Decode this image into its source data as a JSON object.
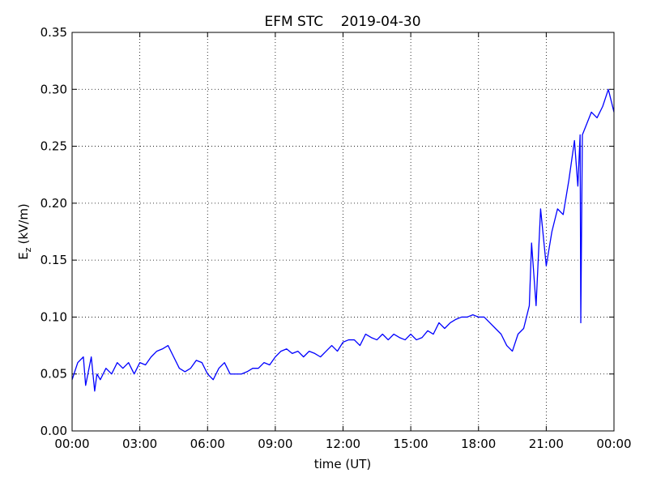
{
  "chart_data": {
    "type": "line",
    "title": "EFM STC    2019-04-30",
    "xlabel": "time (UT)",
    "ylabel": "E",
    "ylabel_subscript": "z",
    "ylabel_unit": "(kV/m)",
    "xlim": [
      0,
      24
    ],
    "ylim": [
      0,
      0.35
    ],
    "xticks": [
      {
        "value": 0,
        "label": "00:00"
      },
      {
        "value": 3,
        "label": "03:00"
      },
      {
        "value": 6,
        "label": "06:00"
      },
      {
        "value": 9,
        "label": "09:00"
      },
      {
        "value": 12,
        "label": "12:00"
      },
      {
        "value": 15,
        "label": "15:00"
      },
      {
        "value": 18,
        "label": "18:00"
      },
      {
        "value": 21,
        "label": "21:00"
      },
      {
        "value": 24,
        "label": "00:00"
      }
    ],
    "yticks": [
      {
        "value": 0,
        "label": "0.00"
      },
      {
        "value": 0.05,
        "label": "0.05"
      },
      {
        "value": 0.1,
        "label": "0.10"
      },
      {
        "value": 0.15,
        "label": "0.15"
      },
      {
        "value": 0.2,
        "label": "0.20"
      },
      {
        "value": 0.25,
        "label": "0.25"
      },
      {
        "value": 0.3,
        "label": "0.30"
      },
      {
        "value": 0.35,
        "label": "0.35"
      }
    ],
    "grid": true,
    "x": [
      0,
      0.25,
      0.5,
      0.6,
      0.75,
      0.85,
      1.0,
      1.1,
      1.25,
      1.5,
      1.75,
      2.0,
      2.25,
      2.5,
      2.75,
      3.0,
      3.25,
      3.5,
      3.75,
      4.0,
      4.25,
      4.5,
      4.75,
      5.0,
      5.25,
      5.5,
      5.75,
      6.0,
      6.25,
      6.5,
      6.75,
      7.0,
      7.25,
      7.5,
      7.75,
      8.0,
      8.25,
      8.5,
      8.75,
      9.0,
      9.25,
      9.5,
      9.75,
      10.0,
      10.25,
      10.5,
      10.75,
      11.0,
      11.25,
      11.5,
      11.75,
      12.0,
      12.25,
      12.5,
      12.75,
      13.0,
      13.25,
      13.5,
      13.75,
      14.0,
      14.25,
      14.5,
      14.75,
      15.0,
      15.25,
      15.5,
      15.75,
      16.0,
      16.25,
      16.5,
      16.75,
      17.0,
      17.25,
      17.5,
      17.75,
      18.0,
      18.25,
      18.5,
      18.75,
      19.0,
      19.25,
      19.5,
      19.75,
      20.0,
      20.25,
      20.35,
      20.55,
      20.75,
      21.0,
      21.25,
      21.5,
      21.75,
      22.0,
      22.25,
      22.4,
      22.5,
      22.53,
      22.6,
      22.8,
      23.0,
      23.25,
      23.5,
      23.75,
      24.0
    ],
    "series": [
      {
        "color": "#0000ff",
        "values": [
          0.045,
          0.06,
          0.065,
          0.04,
          0.055,
          0.065,
          0.035,
          0.05,
          0.045,
          0.055,
          0.05,
          0.06,
          0.055,
          0.06,
          0.05,
          0.06,
          0.058,
          0.065,
          0.07,
          0.072,
          0.075,
          0.065,
          0.055,
          0.052,
          0.055,
          0.062,
          0.06,
          0.05,
          0.045,
          0.055,
          0.06,
          0.05,
          0.05,
          0.05,
          0.052,
          0.055,
          0.055,
          0.06,
          0.058,
          0.065,
          0.07,
          0.072,
          0.068,
          0.07,
          0.065,
          0.07,
          0.068,
          0.065,
          0.07,
          0.075,
          0.07,
          0.078,
          0.08,
          0.08,
          0.075,
          0.085,
          0.082,
          0.08,
          0.085,
          0.08,
          0.085,
          0.082,
          0.08,
          0.085,
          0.08,
          0.082,
          0.088,
          0.085,
          0.095,
          0.09,
          0.095,
          0.098,
          0.1,
          0.1,
          0.102,
          0.1,
          0.1,
          0.095,
          0.09,
          0.085,
          0.075,
          0.07,
          0.085,
          0.09,
          0.11,
          0.165,
          0.11,
          0.195,
          0.145,
          0.175,
          0.195,
          0.19,
          0.22,
          0.255,
          0.215,
          0.26,
          0.095,
          0.26,
          0.27,
          0.28,
          0.275,
          0.285,
          0.3,
          0.28
        ]
      }
    ]
  }
}
